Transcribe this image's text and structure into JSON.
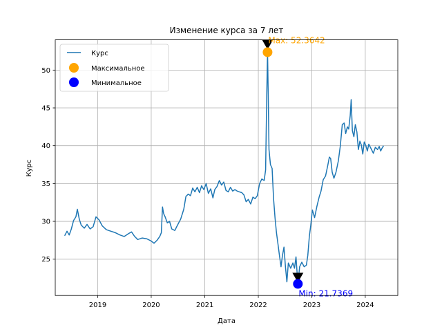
{
  "chart_data": {
    "type": "line",
    "title": "Изменение курса за 7 лет",
    "xlabel": "Дата",
    "ylabel": "Курс",
    "xlim": [
      "2018-03-17",
      "2024-08-10"
    ],
    "ylim": [
      20.2,
      54.0
    ],
    "grid": true,
    "legend_position": "top-left",
    "x_ticks": [
      "2019",
      "2020",
      "2021",
      "2022",
      "2023",
      "2024"
    ],
    "y_ticks": [
      25,
      30,
      35,
      40,
      45,
      50
    ],
    "series": [
      {
        "name": "Курс",
        "color": "#1f77b4",
        "points": [
          [
            "2018-05-20",
            28.1
          ],
          [
            "2018-06-05",
            28.7
          ],
          [
            "2018-06-20",
            28.2
          ],
          [
            "2018-07-05",
            29.0
          ],
          [
            "2018-07-20",
            30.1
          ],
          [
            "2018-08-05",
            30.6
          ],
          [
            "2018-08-15",
            31.6
          ],
          [
            "2018-08-28",
            30.3
          ],
          [
            "2018-09-10",
            29.5
          ],
          [
            "2018-10-01",
            29.1
          ],
          [
            "2018-10-20",
            29.6
          ],
          [
            "2018-11-10",
            29.0
          ],
          [
            "2018-12-01",
            29.3
          ],
          [
            "2018-12-20",
            30.6
          ],
          [
            "2019-01-10",
            30.2
          ],
          [
            "2019-02-01",
            29.4
          ],
          [
            "2019-03-01",
            28.9
          ],
          [
            "2019-04-01",
            28.7
          ],
          [
            "2019-05-01",
            28.5
          ],
          [
            "2019-06-01",
            28.2
          ],
          [
            "2019-07-01",
            28.0
          ],
          [
            "2019-08-01",
            28.4
          ],
          [
            "2019-08-20",
            28.6
          ],
          [
            "2019-09-10",
            28.0
          ],
          [
            "2019-10-01",
            27.6
          ],
          [
            "2019-11-01",
            27.8
          ],
          [
            "2019-12-01",
            27.7
          ],
          [
            "2020-01-01",
            27.4
          ],
          [
            "2020-01-20",
            27.1
          ],
          [
            "2020-02-10",
            27.5
          ],
          [
            "2020-02-28",
            28.0
          ],
          [
            "2020-03-10",
            28.5
          ],
          [
            "2020-03-18",
            31.9
          ],
          [
            "2020-03-26",
            31.0
          ],
          [
            "2020-04-05",
            30.6
          ],
          [
            "2020-04-20",
            29.8
          ],
          [
            "2020-05-05",
            30.0
          ],
          [
            "2020-05-20",
            29.0
          ],
          [
            "2020-06-10",
            28.8
          ],
          [
            "2020-07-01",
            29.6
          ],
          [
            "2020-07-20",
            30.3
          ],
          [
            "2020-08-10",
            31.6
          ],
          [
            "2020-08-25",
            33.3
          ],
          [
            "2020-09-10",
            33.6
          ],
          [
            "2020-09-25",
            33.4
          ],
          [
            "2020-10-10",
            34.4
          ],
          [
            "2020-10-25",
            33.9
          ],
          [
            "2020-11-10",
            34.5
          ],
          [
            "2020-11-25",
            33.8
          ],
          [
            "2020-12-10",
            34.7
          ],
          [
            "2020-12-25",
            34.2
          ],
          [
            "2021-01-10",
            35.0
          ],
          [
            "2021-01-25",
            33.7
          ],
          [
            "2021-02-10",
            34.3
          ],
          [
            "2021-02-25",
            33.1
          ],
          [
            "2021-03-10",
            34.2
          ],
          [
            "2021-03-25",
            34.6
          ],
          [
            "2021-04-10",
            35.4
          ],
          [
            "2021-04-25",
            34.8
          ],
          [
            "2021-05-10",
            35.2
          ],
          [
            "2021-05-25",
            34.1
          ],
          [
            "2021-06-10",
            33.9
          ],
          [
            "2021-06-25",
            34.5
          ],
          [
            "2021-07-10",
            34.0
          ],
          [
            "2021-07-25",
            34.2
          ],
          [
            "2021-08-10",
            34.0
          ],
          [
            "2021-08-25",
            33.9
          ],
          [
            "2021-09-10",
            33.8
          ],
          [
            "2021-09-25",
            33.5
          ],
          [
            "2021-10-10",
            32.6
          ],
          [
            "2021-10-25",
            32.9
          ],
          [
            "2021-11-10",
            32.3
          ],
          [
            "2021-11-25",
            33.2
          ],
          [
            "2021-12-10",
            33.0
          ],
          [
            "2021-12-25",
            33.4
          ],
          [
            "2022-01-10",
            35.0
          ],
          [
            "2022-01-25",
            35.6
          ],
          [
            "2022-02-10",
            35.4
          ],
          [
            "2022-02-20",
            36.8
          ],
          [
            "2022-02-28",
            47.0
          ],
          [
            "2022-03-05",
            52.3642
          ],
          [
            "2022-03-10",
            46.0
          ],
          [
            "2022-03-15",
            39.5
          ],
          [
            "2022-03-25",
            37.5
          ],
          [
            "2022-04-05",
            37.0
          ],
          [
            "2022-04-15",
            33.0
          ],
          [
            "2022-04-25",
            30.5
          ],
          [
            "2022-05-05",
            28.5
          ],
          [
            "2022-05-15",
            27.0
          ],
          [
            "2022-05-25",
            25.5
          ],
          [
            "2022-06-05",
            24.0
          ],
          [
            "2022-06-15",
            25.5
          ],
          [
            "2022-06-25",
            26.6
          ],
          [
            "2022-07-05",
            24.0
          ],
          [
            "2022-07-15",
            22.0
          ],
          [
            "2022-07-25",
            24.5
          ],
          [
            "2022-08-10",
            23.8
          ],
          [
            "2022-08-25",
            24.5
          ],
          [
            "2022-09-05",
            23.8
          ],
          [
            "2022-09-15",
            25.3
          ],
          [
            "2022-09-28",
            21.7369
          ],
          [
            "2022-10-10",
            24.0
          ],
          [
            "2022-10-25",
            24.6
          ],
          [
            "2022-11-10",
            24.0
          ],
          [
            "2022-11-25",
            24.2
          ],
          [
            "2022-12-05",
            25.5
          ],
          [
            "2022-12-15",
            28.0
          ],
          [
            "2022-12-25",
            29.5
          ],
          [
            "2023-01-05",
            31.5
          ],
          [
            "2023-01-20",
            30.5
          ],
          [
            "2023-02-05",
            32.0
          ],
          [
            "2023-02-20",
            33.2
          ],
          [
            "2023-03-05",
            34.0
          ],
          [
            "2023-03-20",
            35.5
          ],
          [
            "2023-04-05",
            36.0
          ],
          [
            "2023-04-20",
            37.4
          ],
          [
            "2023-05-01",
            38.5
          ],
          [
            "2023-05-10",
            38.3
          ],
          [
            "2023-05-20",
            36.5
          ],
          [
            "2023-06-01",
            35.7
          ],
          [
            "2023-06-15",
            36.5
          ],
          [
            "2023-07-01",
            38.0
          ],
          [
            "2023-07-15",
            40.0
          ],
          [
            "2023-07-28",
            42.8
          ],
          [
            "2023-08-10",
            43.0
          ],
          [
            "2023-08-20",
            41.6
          ],
          [
            "2023-09-01",
            42.5
          ],
          [
            "2023-09-10",
            42.2
          ],
          [
            "2023-09-20",
            44.0
          ],
          [
            "2023-09-27",
            46.1
          ],
          [
            "2023-10-05",
            42.0
          ],
          [
            "2023-10-15",
            41.2
          ],
          [
            "2023-10-25",
            42.8
          ],
          [
            "2023-11-05",
            41.8
          ],
          [
            "2023-11-15",
            39.5
          ],
          [
            "2023-11-25",
            40.6
          ],
          [
            "2023-12-05",
            40.1
          ],
          [
            "2023-12-15",
            38.9
          ],
          [
            "2023-12-25",
            40.5
          ],
          [
            "2024-01-05",
            40.0
          ],
          [
            "2024-01-15",
            39.3
          ],
          [
            "2024-01-25",
            40.2
          ],
          [
            "2024-02-10",
            39.6
          ],
          [
            "2024-02-25",
            39.0
          ],
          [
            "2024-03-10",
            39.8
          ],
          [
            "2024-03-25",
            39.5
          ],
          [
            "2024-04-05",
            39.9
          ],
          [
            "2024-04-15",
            39.3
          ],
          [
            "2024-04-25",
            39.7
          ],
          [
            "2024-05-05",
            40.0
          ]
        ]
      }
    ],
    "markers": [
      {
        "name": "Максимальное",
        "x": "2022-03-05",
        "y": 52.3642,
        "color": "#ffa500",
        "label": "Max: 52.3642"
      },
      {
        "name": "Минимальное",
        "x": "2022-09-28",
        "y": 21.7369,
        "color": "#0000ff",
        "label": "Min: 21.7369"
      }
    ]
  }
}
